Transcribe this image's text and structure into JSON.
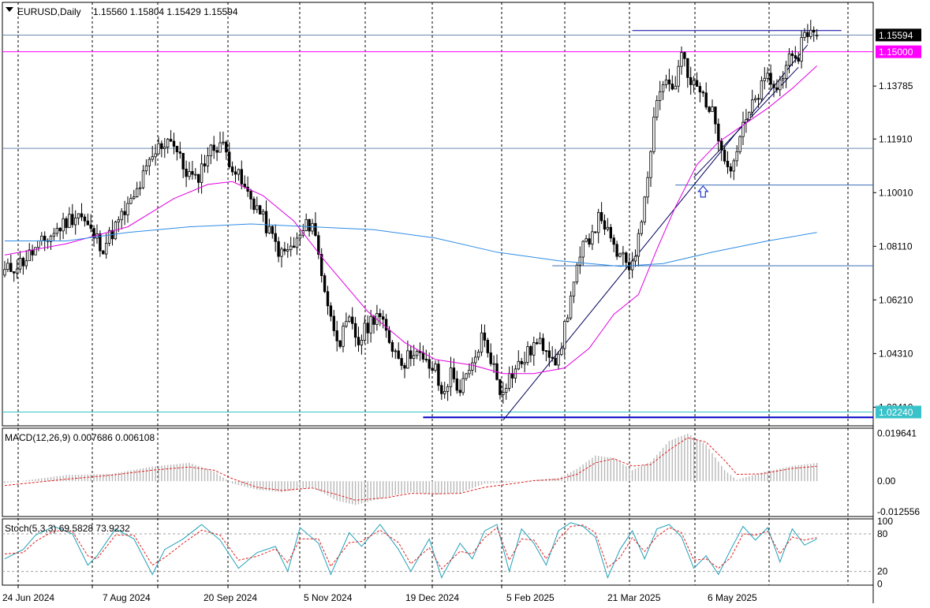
{
  "header": {
    "symbol": "EURUSD,Daily",
    "ohlc": "1.15560 1.15804 1.15429 1.15594"
  },
  "panes": {
    "macd_label": "MACD(12,26,9) 0.007686 0.006108",
    "stoch_label": "Stoch(5,3,3) 69.5828 73.9232"
  },
  "chart_data": [
    {
      "type": "candlestick",
      "pane": "price",
      "symbol": "EURUSD",
      "timeframe": "Daily",
      "last": {
        "open": 1.1556,
        "high": 1.15804,
        "low": 1.15429,
        "close": 1.15594
      },
      "y_ticks": [
        "1.13785",
        "1.11910",
        "1.10010",
        "1.08110",
        "1.06210",
        "1.04310",
        "1.02410"
      ],
      "ylim": [
        1.0175,
        1.1675
      ],
      "price_labels": [
        {
          "text": "1.15594",
          "value": 1.15594,
          "color": "#000000"
        },
        {
          "text": "1.15000",
          "value": 1.15,
          "color": "#ff00ff"
        },
        {
          "text": "1.02240",
          "value": 1.0224,
          "color": "#39c2c9"
        }
      ],
      "x_ticks": [
        "24 Jun 2024",
        "7 Aug 2024",
        "20 Sep 2024",
        "5 Nov 2024",
        "19 Dec 2024",
        "5 Feb 2025",
        "21 Mar 2025",
        "6 May 2025"
      ],
      "grid": true,
      "close_path": [
        [
          0,
          1.072
        ],
        [
          6,
          1.076
        ],
        [
          12,
          1.082
        ],
        [
          20,
          1.09
        ],
        [
          24,
          1.093
        ],
        [
          28,
          1.086
        ],
        [
          32,
          1.081
        ],
        [
          36,
          1.088
        ],
        [
          42,
          1.098
        ],
        [
          46,
          1.108
        ],
        [
          50,
          1.116
        ],
        [
          54,
          1.12
        ],
        [
          58,
          1.109
        ],
        [
          62,
          1.104
        ],
        [
          66,
          1.114
        ],
        [
          70,
          1.118
        ],
        [
          74,
          1.11
        ],
        [
          78,
          1.101
        ],
        [
          82,
          1.095
        ],
        [
          86,
          1.086
        ],
        [
          90,
          1.078
        ],
        [
          94,
          1.081
        ],
        [
          98,
          1.088
        ],
        [
          100,
          1.09
        ],
        [
          103,
          1.072
        ],
        [
          106,
          1.055
        ],
        [
          109,
          1.048
        ],
        [
          112,
          1.054
        ],
        [
          115,
          1.047
        ],
        [
          118,
          1.053
        ],
        [
          121,
          1.058
        ],
        [
          124,
          1.05
        ],
        [
          127,
          1.044
        ],
        [
          130,
          1.04
        ],
        [
          133,
          1.045
        ],
        [
          136,
          1.04
        ],
        [
          140,
          1.037
        ],
        [
          142,
          1.028
        ],
        [
          145,
          1.036
        ],
        [
          148,
          1.03
        ],
        [
          152,
          1.038
        ],
        [
          155,
          1.049
        ],
        [
          158,
          1.042
        ],
        [
          161,
          1.03
        ],
        [
          164,
          1.035
        ],
        [
          168,
          1.04
        ],
        [
          172,
          1.046
        ],
        [
          176,
          1.046
        ],
        [
          180,
          1.04
        ],
        [
          182,
          1.053
        ],
        [
          185,
          1.068
        ],
        [
          188,
          1.08
        ],
        [
          191,
          1.087
        ],
        [
          194,
          1.092
        ],
        [
          197,
          1.082
        ],
        [
          200,
          1.077
        ],
        [
          203,
          1.074
        ],
        [
          206,
          1.083
        ],
        [
          209,
          1.108
        ],
        [
          212,
          1.135
        ],
        [
          215,
          1.14
        ],
        [
          218,
          1.137
        ],
        [
          220,
          1.15
        ],
        [
          222,
          1.14
        ],
        [
          225,
          1.137
        ],
        [
          228,
          1.133
        ],
        [
          231,
          1.125
        ],
        [
          234,
          1.114
        ],
        [
          236,
          1.108
        ],
        [
          239,
          1.12
        ],
        [
          242,
          1.128
        ],
        [
          245,
          1.135
        ],
        [
          248,
          1.141
        ],
        [
          251,
          1.136
        ],
        [
          254,
          1.147
        ],
        [
          257,
          1.145
        ],
        [
          260,
          1.158
        ],
        [
          263,
          1.156
        ],
        [
          264,
          1.15594
        ]
      ],
      "series": [
        {
          "kind": "moving-average",
          "color": "#e100e1",
          "values": [
            [
              0,
              1.078
            ],
            [
              20,
              1.082
            ],
            [
              40,
              1.088
            ],
            [
              55,
              1.098
            ],
            [
              66,
              1.103
            ],
            [
              74,
              1.104
            ],
            [
              84,
              1.099
            ],
            [
              94,
              1.09
            ],
            [
              104,
              1.076
            ],
            [
              118,
              1.058
            ],
            [
              130,
              1.047
            ],
            [
              140,
              1.041
            ],
            [
              152,
              1.039
            ],
            [
              162,
              1.036
            ],
            [
              172,
              1.036
            ],
            [
              182,
              1.038
            ],
            [
              190,
              1.045
            ],
            [
              198,
              1.057
            ],
            [
              206,
              1.064
            ],
            [
              212,
              1.08
            ],
            [
              218,
              1.095
            ],
            [
              225,
              1.11
            ],
            [
              232,
              1.118
            ],
            [
              240,
              1.124
            ],
            [
              248,
              1.13
            ],
            [
              256,
              1.137
            ],
            [
              264,
              1.145
            ]
          ]
        },
        {
          "kind": "moving-average",
          "color": "#2d8ce6",
          "values": [
            [
              0,
              1.083
            ],
            [
              20,
              1.083
            ],
            [
              40,
              1.086
            ],
            [
              60,
              1.088
            ],
            [
              80,
              1.089
            ],
            [
              100,
              1.088
            ],
            [
              120,
              1.087
            ],
            [
              140,
              1.084
            ],
            [
              160,
              1.079
            ],
            [
              180,
              1.076
            ],
            [
              200,
              1.074
            ],
            [
              214,
              1.075
            ],
            [
              230,
              1.079
            ],
            [
              248,
              1.083
            ],
            [
              264,
              1.086
            ]
          ]
        }
      ],
      "horizontal_lines": [
        {
          "value": 1.1559,
          "color": "#6a8ab0"
        },
        {
          "value": 1.15,
          "color": "#ff00ff"
        },
        {
          "value": 1.1158,
          "color": "#6a8ab0"
        },
        {
          "value": 1.1028,
          "color": "#3a6fb8",
          "from": 218
        },
        {
          "value": 1.0742,
          "color": "#3a6fb8",
          "from": 178
        },
        {
          "value": 1.0224,
          "color": "#39c2c9"
        },
        {
          "value": 1.0205,
          "color": "#0000c8",
          "from": 136,
          "bold": true
        },
        {
          "value": 1.1575,
          "color": "#0000a0",
          "from": 204,
          "to": 272
        }
      ],
      "trend_lines": [
        {
          "color": "#00005a",
          "from": [
            162,
            1.0195
          ],
          "to": [
            261,
            1.1525
          ]
        },
        {
          "color": "#00005a",
          "from": [
            224,
            1.1055
          ],
          "to": [
            258,
            1.1445
          ]
        }
      ],
      "annotations": [
        {
          "kind": "up-arrow",
          "x": 227,
          "value": 1.1005,
          "color": "#1d3bd4"
        }
      ]
    },
    {
      "type": "bar",
      "pane": "macd",
      "indicator": "MACD(12,26,9)",
      "macd": 0.007686,
      "signal": 0.006108,
      "y_ticks": [
        "0.019641",
        "0.00",
        "-0.012556"
      ],
      "ylim": [
        -0.0145,
        0.0217
      ],
      "histogram": [
        [
          0,
          -0.0008
        ],
        [
          20,
          0.0025
        ],
        [
          35,
          0.003
        ],
        [
          48,
          0.006
        ],
        [
          60,
          0.0075
        ],
        [
          68,
          0.004
        ],
        [
          74,
          -0.001
        ],
        [
          82,
          -0.0035
        ],
        [
          90,
          -0.0045
        ],
        [
          100,
          -0.0025
        ],
        [
          108,
          -0.008
        ],
        [
          114,
          -0.0098
        ],
        [
          124,
          -0.0065
        ],
        [
          132,
          -0.0045
        ],
        [
          140,
          -0.0055
        ],
        [
          148,
          -0.0048
        ],
        [
          156,
          -0.001
        ],
        [
          164,
          -0.0005
        ],
        [
          172,
          0.0005
        ],
        [
          180,
          0.0012
        ],
        [
          186,
          0.005
        ],
        [
          192,
          0.0105
        ],
        [
          198,
          0.0095
        ],
        [
          204,
          0.0045
        ],
        [
          210,
          0.008
        ],
        [
          216,
          0.0165
        ],
        [
          222,
          0.0195
        ],
        [
          228,
          0.015
        ],
        [
          234,
          0.0045
        ],
        [
          238,
          0.0005
        ],
        [
          246,
          0.0035
        ],
        [
          256,
          0.0062
        ],
        [
          264,
          0.0075
        ]
      ],
      "signal_line": [
        [
          0,
          -0.0018
        ],
        [
          20,
          0.0008
        ],
        [
          35,
          0.0025
        ],
        [
          48,
          0.0045
        ],
        [
          60,
          0.0058
        ],
        [
          68,
          0.0045
        ],
        [
          74,
          0.001
        ],
        [
          82,
          -0.0025
        ],
        [
          90,
          -0.0038
        ],
        [
          100,
          -0.0028
        ],
        [
          108,
          -0.0055
        ],
        [
          114,
          -0.0078
        ],
        [
          124,
          -0.0068
        ],
        [
          132,
          -0.005
        ],
        [
          140,
          -0.0052
        ],
        [
          148,
          -0.005
        ],
        [
          156,
          -0.0025
        ],
        [
          164,
          -0.0012
        ],
        [
          172,
          0.0002
        ],
        [
          180,
          0.0008
        ],
        [
          186,
          0.0028
        ],
        [
          192,
          0.0075
        ],
        [
          198,
          0.0092
        ],
        [
          204,
          0.0062
        ],
        [
          210,
          0.0068
        ],
        [
          216,
          0.0128
        ],
        [
          222,
          0.0178
        ],
        [
          228,
          0.016
        ],
        [
          234,
          0.0085
        ],
        [
          238,
          0.0028
        ],
        [
          246,
          0.003
        ],
        [
          256,
          0.0052
        ],
        [
          264,
          0.0061
        ]
      ]
    },
    {
      "type": "line",
      "pane": "stochastic",
      "indicator": "Stoch(5,3,3)",
      "main": 69.5828,
      "signal": 73.9232,
      "y_ticks": [
        "100",
        "80",
        "20",
        "0"
      ],
      "ylim": [
        -2,
        104
      ],
      "main_line": [
        [
          0,
          40
        ],
        [
          6,
          55
        ],
        [
          10,
          78
        ],
        [
          16,
          92
        ],
        [
          22,
          80
        ],
        [
          27,
          30
        ],
        [
          30,
          45
        ],
        [
          36,
          88
        ],
        [
          42,
          72
        ],
        [
          48,
          15
        ],
        [
          52,
          55
        ],
        [
          58,
          72
        ],
        [
          64,
          95
        ],
        [
          70,
          70
        ],
        [
          76,
          25
        ],
        [
          82,
          50
        ],
        [
          88,
          60
        ],
        [
          92,
          20
        ],
        [
          96,
          90
        ],
        [
          102,
          65
        ],
        [
          106,
          15
        ],
        [
          112,
          82
        ],
        [
          116,
          60
        ],
        [
          122,
          95
        ],
        [
          128,
          55
        ],
        [
          132,
          20
        ],
        [
          138,
          72
        ],
        [
          142,
          10
        ],
        [
          148,
          65
        ],
        [
          152,
          40
        ],
        [
          156,
          85
        ],
        [
          160,
          95
        ],
        [
          164,
          20
        ],
        [
          168,
          88
        ],
        [
          172,
          65
        ],
        [
          176,
          30
        ],
        [
          180,
          85
        ],
        [
          184,
          98
        ],
        [
          188,
          92
        ],
        [
          192,
          75
        ],
        [
          196,
          10
        ],
        [
          200,
          55
        ],
        [
          204,
          85
        ],
        [
          208,
          40
        ],
        [
          212,
          88
        ],
        [
          216,
          95
        ],
        [
          220,
          75
        ],
        [
          224,
          25
        ],
        [
          228,
          45
        ],
        [
          232,
          15
        ],
        [
          236,
          55
        ],
        [
          240,
          92
        ],
        [
          244,
          70
        ],
        [
          248,
          90
        ],
        [
          252,
          35
        ],
        [
          256,
          88
        ],
        [
          260,
          62
        ],
        [
          264,
          72
        ]
      ],
      "signal_line": [
        [
          0,
          48
        ],
        [
          6,
          50
        ],
        [
          10,
          68
        ],
        [
          16,
          85
        ],
        [
          22,
          84
        ],
        [
          27,
          45
        ],
        [
          30,
          40
        ],
        [
          36,
          78
        ],
        [
          42,
          78
        ],
        [
          48,
          30
        ],
        [
          52,
          42
        ],
        [
          58,
          65
        ],
        [
          64,
          86
        ],
        [
          70,
          78
        ],
        [
          76,
          38
        ],
        [
          82,
          44
        ],
        [
          88,
          56
        ],
        [
          92,
          34
        ],
        [
          96,
          72
        ],
        [
          102,
          72
        ],
        [
          106,
          28
        ],
        [
          112,
          66
        ],
        [
          116,
          68
        ],
        [
          122,
          86
        ],
        [
          128,
          66
        ],
        [
          132,
          32
        ],
        [
          138,
          58
        ],
        [
          142,
          24
        ],
        [
          148,
          52
        ],
        [
          152,
          48
        ],
        [
          156,
          74
        ],
        [
          160,
          90
        ],
        [
          164,
          38
        ],
        [
          168,
          72
        ],
        [
          172,
          70
        ],
        [
          176,
          40
        ],
        [
          180,
          72
        ],
        [
          184,
          92
        ],
        [
          188,
          94
        ],
        [
          192,
          82
        ],
        [
          196,
          26
        ],
        [
          200,
          42
        ],
        [
          204,
          74
        ],
        [
          208,
          52
        ],
        [
          212,
          76
        ],
        [
          216,
          90
        ],
        [
          220,
          82
        ],
        [
          224,
          38
        ],
        [
          228,
          40
        ],
        [
          232,
          25
        ],
        [
          236,
          42
        ],
        [
          240,
          80
        ],
        [
          244,
          78
        ],
        [
          248,
          84
        ],
        [
          252,
          48
        ],
        [
          256,
          75
        ],
        [
          260,
          70
        ],
        [
          264,
          74
        ]
      ]
    }
  ]
}
